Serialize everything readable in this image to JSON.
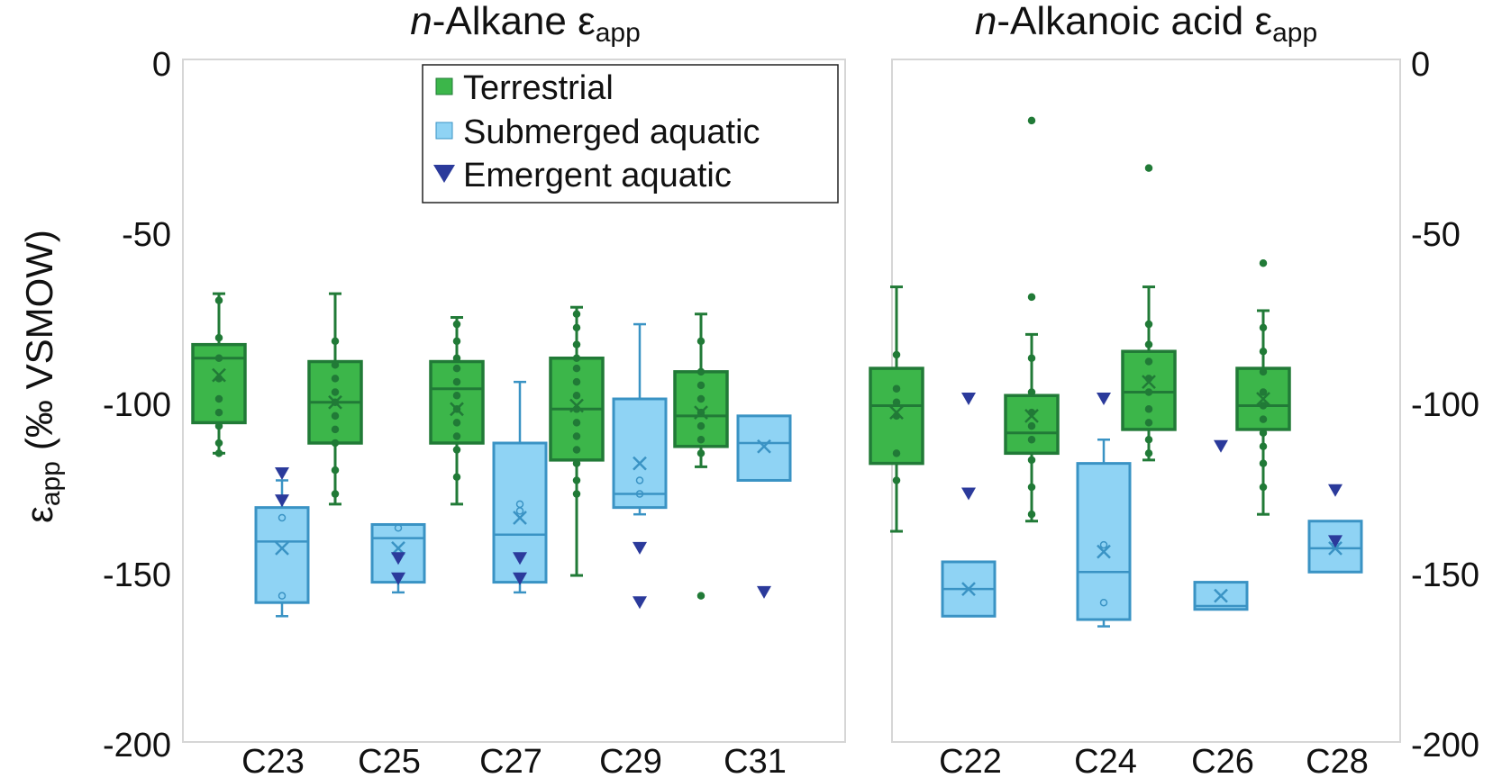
{
  "chart_data": [
    {
      "type": "box",
      "title": {
        "prefix": "n",
        "main": "-Alkane ε",
        "sub": "app"
      },
      "ylabel": {
        "symbol": "ε",
        "sub": "app",
        "rest": "(‰ VSMOW)"
      },
      "ylim": [
        -200,
        0
      ],
      "yticks": [
        "0",
        "-50",
        "-100",
        "-150",
        "-200"
      ],
      "categories": [
        "C23",
        "C25",
        "C27",
        "C29",
        "C31"
      ],
      "legend": {
        "placement": "top-center",
        "entries": [
          {
            "label": "Terrestrial",
            "marker": "square",
            "color": "#3cb64a"
          },
          {
            "label": "Submerged aquatic",
            "marker": "square",
            "color": "#8fd3f4"
          },
          {
            "label": "Emergent aquatic",
            "marker": "triangle-down",
            "color": "#2b3a9b"
          }
        ]
      },
      "series": [
        {
          "name": "Terrestrial",
          "boxes": [
            {
              "category": "C23",
              "min": -116,
              "q1": -107,
              "median": -88,
              "q3": -84,
              "max": -69,
              "mean": -93,
              "points": [
                -71,
                -82,
                -88,
                -94,
                -100,
                -104,
                -108,
                -113,
                -116
              ]
            },
            {
              "category": "C25",
              "min": -131,
              "q1": -113,
              "median": -101,
              "q3": -89,
              "max": -69,
              "mean": -101,
              "points": [
                -83,
                -90,
                -94,
                -98,
                -101,
                -105,
                -109,
                -113,
                -121,
                -128
              ]
            },
            {
              "category": "C27",
              "min": -131,
              "q1": -113,
              "median": -97,
              "q3": -89,
              "max": -76,
              "mean": -103,
              "points": [
                -78,
                -83,
                -88,
                -91,
                -95,
                -99,
                -103,
                -107,
                -111,
                -115,
                -123
              ]
            },
            {
              "category": "C29",
              "min": -152,
              "q1": -118,
              "median": -103,
              "q3": -88,
              "max": -73,
              "mean": -102,
              "points": [
                -75,
                -79,
                -84,
                -88,
                -91,
                -95,
                -99,
                -103,
                -107,
                -111,
                -115,
                -119,
                -124,
                -128
              ]
            },
            {
              "category": "C31",
              "min": -120,
              "q1": -114,
              "median": -105,
              "q3": -92,
              "max": -75,
              "mean": -104,
              "points": [
                -83,
                -92,
                -96,
                -100,
                -104,
                -108,
                -112,
                -116,
                -158
              ]
            }
          ]
        },
        {
          "name": "Submerged aquatic",
          "boxes": [
            {
              "category": "C23",
              "min": -164,
              "q1": -160,
              "median": -142,
              "q3": -132,
              "max": -124,
              "mean": -144,
              "points": [
                -135,
                -158
              ]
            },
            {
              "category": "C25",
              "min": -157,
              "q1": -154,
              "median": -141,
              "q3": -137,
              "max": -137,
              "mean": -144,
              "points": [
                -138
              ]
            },
            {
              "category": "C27",
              "min": -157,
              "q1": -154,
              "median": -140,
              "q3": -113,
              "max": -95,
              "mean": -135,
              "points": [
                -131,
                -133
              ]
            },
            {
              "category": "C29",
              "min": -134,
              "q1": -132,
              "median": -128,
              "q3": -100,
              "max": -78,
              "mean": -119,
              "points": [
                -124,
                -128
              ]
            },
            {
              "category": "C31",
              "min": -124,
              "q1": -124,
              "median": -113,
              "q3": -105,
              "max": -105,
              "mean": -114,
              "points": []
            }
          ]
        },
        {
          "name": "Emergent aquatic",
          "points": [
            {
              "category": "C23",
              "values": [
                -122,
                -130
              ]
            },
            {
              "category": "C25",
              "values": [
                -147,
                -153
              ]
            },
            {
              "category": "C27",
              "values": [
                -147,
                -153
              ]
            },
            {
              "category": "C29",
              "values": [
                -144,
                -160
              ]
            },
            {
              "category": "C31",
              "values": [
                -157
              ]
            }
          ]
        }
      ]
    },
    {
      "type": "box",
      "title": {
        "prefix": "n",
        "main": "-Alkanoic acid ε",
        "sub": "app"
      },
      "ylim": [
        -200,
        0
      ],
      "yticks": [
        "0",
        "-50",
        "-100",
        "-150",
        "-200"
      ],
      "categories": [
        "C22",
        "C24",
        "C26",
        "C28"
      ],
      "series": [
        {
          "name": "Terrestrial",
          "boxes": [
            {
              "category": "C22",
              "min": -139,
              "q1": -119,
              "median": -102,
              "q3": -91,
              "max": -67,
              "mean": -104,
              "points": [
                -87,
                -97,
                -101,
                -105,
                -116,
                -124
              ]
            },
            {
              "category": "C24",
              "min": -136,
              "q1": -116,
              "median": -110,
              "q3": -99,
              "max": -81,
              "mean": -105,
              "points": [
                -18,
                -70,
                -88,
                -98,
                -104,
                -108,
                -112,
                -118,
                -126,
                -134
              ]
            },
            {
              "category": "C26",
              "min": -118,
              "q1": -109,
              "median": -98,
              "q3": -86,
              "max": -67,
              "mean": -95,
              "points": [
                -32,
                -78,
                -84,
                -89,
                -94,
                -98,
                -103,
                -107,
                -112,
                -116
              ]
            },
            {
              "category": "C28",
              "min": -134,
              "q1": -109,
              "median": -102,
              "q3": -91,
              "max": -74,
              "mean": -100,
              "points": [
                -60,
                -79,
                -86,
                -92,
                -98,
                -102,
                -106,
                -110,
                -114,
                -119,
                -126
              ]
            }
          ]
        },
        {
          "name": "Submerged aquatic",
          "boxes": [
            {
              "category": "C22",
              "min": -164,
              "q1": -164,
              "median": -156,
              "q3": -148,
              "max": -148,
              "mean": -156,
              "points": []
            },
            {
              "category": "C24",
              "min": -167,
              "q1": -165,
              "median": -151,
              "q3": -119,
              "max": -112,
              "mean": -145,
              "points": [
                -143,
                -160
              ]
            },
            {
              "category": "C26",
              "min": -162,
              "q1": -162,
              "median": -161,
              "q3": -154,
              "max": -154,
              "mean": -158,
              "points": []
            },
            {
              "category": "C28",
              "min": -151,
              "q1": -151,
              "median": -144,
              "q3": -136,
              "max": -136,
              "mean": -144,
              "points": [
                -143
              ]
            }
          ]
        },
        {
          "name": "Emergent aquatic",
          "points": [
            {
              "category": "C22",
              "values": [
                -100,
                -128
              ]
            },
            {
              "category": "C24",
              "values": [
                -100
              ]
            },
            {
              "category": "C26",
              "values": [
                -114
              ]
            },
            {
              "category": "C28",
              "values": [
                -127,
                -142
              ]
            }
          ]
        }
      ]
    }
  ],
  "colors": {
    "terrestrial_fill": "#3cb64a",
    "terrestrial_stroke": "#217a37",
    "submerged_fill": "#8fd3f4",
    "submerged_stroke": "#3a93c4",
    "emergent": "#2b3a9b"
  }
}
